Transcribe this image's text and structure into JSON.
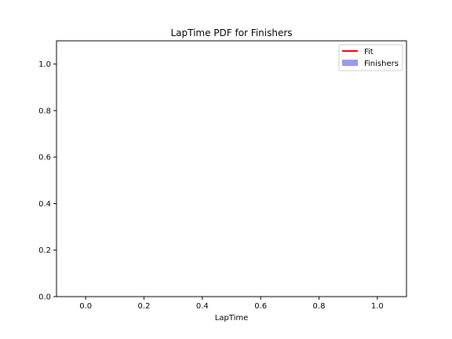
{
  "chart_data": {
    "type": "line",
    "title": "LapTime PDF for Finishers",
    "xlabel": "LapTime",
    "ylabel": "",
    "xlim": [
      -0.1,
      1.1
    ],
    "ylim": [
      0.0,
      1.1
    ],
    "x_ticks": [
      0.0,
      0.2,
      0.4,
      0.6,
      0.8,
      1.0
    ],
    "y_ticks": [
      0.0,
      0.2,
      0.4,
      0.6,
      0.8,
      1.0
    ],
    "x_tick_labels": [
      "0.0",
      "0.2",
      "0.4",
      "0.6",
      "0.8",
      "1.0"
    ],
    "y_tick_labels": [
      "0.0",
      "0.2",
      "0.4",
      "0.6",
      "0.8",
      "1.0"
    ],
    "grid": false,
    "legend_position": "top-right",
    "series": [
      {
        "name": "Fit",
        "kind": "line",
        "color": "#ff0000",
        "values": []
      },
      {
        "name": "Finishers",
        "kind": "histogram",
        "color": "#9999ee",
        "values": []
      }
    ]
  }
}
